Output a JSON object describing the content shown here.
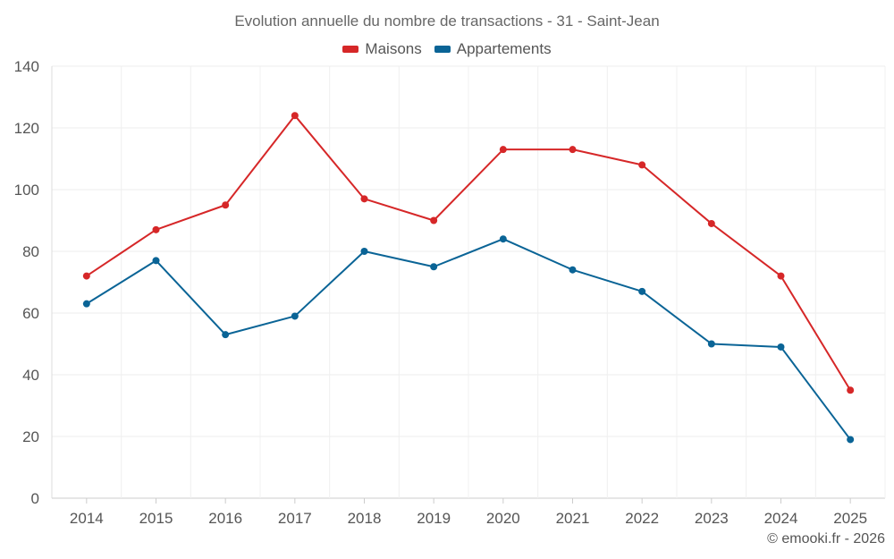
{
  "chart_data": {
    "type": "line",
    "title": "Evolution annuelle du nombre de transactions - 31 - Saint-Jean",
    "xlabel": "",
    "ylabel": "",
    "categories": [
      "2014",
      "2015",
      "2016",
      "2017",
      "2018",
      "2019",
      "2020",
      "2021",
      "2022",
      "2023",
      "2024",
      "2025"
    ],
    "ylim": [
      0,
      140
    ],
    "yticks": [
      0,
      20,
      40,
      60,
      80,
      100,
      120,
      140
    ],
    "grid": true,
    "legend_position": "top-center",
    "series": [
      {
        "name": "Maisons",
        "color": "#d62728",
        "values": [
          72,
          87,
          95,
          124,
          97,
          90,
          113,
          113,
          108,
          89,
          72,
          35
        ]
      },
      {
        "name": "Appartements",
        "color": "#0a6496",
        "values": [
          63,
          77,
          53,
          59,
          80,
          75,
          84,
          74,
          67,
          50,
          49,
          19
        ]
      }
    ]
  },
  "credit": "© emooki.fr - 2026"
}
